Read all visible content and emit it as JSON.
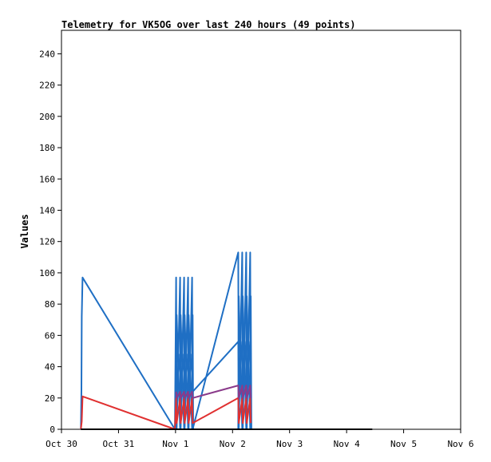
{
  "chart_data": {
    "type": "line",
    "title": "Telemetry for VK5OG over last 240 hours (49 points)",
    "xlabel": "",
    "ylabel": "Values",
    "ylim": [
      0,
      255
    ],
    "yticks": [
      0,
      20,
      40,
      60,
      80,
      100,
      120,
      140,
      160,
      180,
      200,
      220,
      240
    ],
    "xlim": [
      "Oct 30",
      "Nov 6"
    ],
    "xticks": [
      "Oct 30",
      "Oct 31",
      "Nov 1",
      "Nov 2",
      "Nov 3",
      "Nov 4",
      "Nov 5",
      "Nov 6"
    ],
    "grid": false,
    "series": [
      {
        "color": "#1f6fc4",
        "points": [
          [
            0.34,
            0
          ],
          [
            0.35,
            25
          ],
          [
            0.355,
            72
          ],
          [
            0.37,
            97
          ],
          [
            1.99,
            0
          ],
          [
            2.01,
            97
          ],
          [
            2.02,
            0
          ],
          [
            2.08,
            97
          ],
          [
            2.09,
            0
          ],
          [
            2.15,
            97
          ],
          [
            2.16,
            0
          ],
          [
            2.22,
            97
          ],
          [
            2.23,
            0
          ],
          [
            2.29,
            97
          ],
          [
            2.3,
            0
          ],
          [
            3.1,
            113
          ],
          [
            3.11,
            0
          ],
          [
            3.17,
            113
          ],
          [
            3.18,
            0
          ],
          [
            3.24,
            113
          ],
          [
            3.25,
            0
          ],
          [
            3.31,
            113
          ],
          [
            3.32,
            0
          ]
        ]
      },
      {
        "color": "#1f6fc4",
        "points": [
          [
            2.01,
            0
          ],
          [
            2.02,
            73
          ],
          [
            2.08,
            0
          ],
          [
            2.09,
            73
          ],
          [
            2.15,
            0
          ],
          [
            2.16,
            73
          ],
          [
            2.22,
            0
          ],
          [
            2.23,
            73
          ],
          [
            2.29,
            0
          ],
          [
            2.3,
            73
          ],
          [
            2.31,
            0
          ],
          [
            3.1,
            0
          ],
          [
            3.11,
            85
          ],
          [
            3.17,
            0
          ],
          [
            3.18,
            85
          ],
          [
            3.24,
            0
          ],
          [
            3.25,
            85
          ],
          [
            3.31,
            0
          ],
          [
            3.32,
            85
          ],
          [
            3.33,
            0
          ]
        ]
      },
      {
        "color": "#1f6fc4",
        "points": [
          [
            2.01,
            48
          ],
          [
            2.02,
            24
          ],
          [
            2.08,
            48
          ],
          [
            2.09,
            24
          ],
          [
            2.15,
            48
          ],
          [
            2.16,
            24
          ],
          [
            2.22,
            48
          ],
          [
            2.23,
            24
          ],
          [
            2.29,
            48
          ],
          [
            2.3,
            24
          ],
          [
            3.1,
            56
          ],
          [
            3.11,
            28
          ],
          [
            3.17,
            56
          ],
          [
            3.18,
            28
          ],
          [
            3.24,
            56
          ],
          [
            3.25,
            28
          ],
          [
            3.31,
            56
          ],
          [
            3.32,
            28
          ]
        ]
      },
      {
        "color": "#e03030",
        "points": [
          [
            0.34,
            0
          ],
          [
            0.355,
            5
          ],
          [
            0.37,
            21
          ],
          [
            1.99,
            0
          ],
          [
            2.01,
            20
          ],
          [
            2.02,
            4
          ],
          [
            2.08,
            20
          ],
          [
            2.09,
            4
          ],
          [
            2.15,
            20
          ],
          [
            2.16,
            4
          ],
          [
            2.22,
            20
          ],
          [
            2.23,
            4
          ],
          [
            2.29,
            20
          ],
          [
            2.3,
            4
          ],
          [
            3.1,
            20
          ],
          [
            3.11,
            4
          ],
          [
            3.17,
            20
          ],
          [
            3.18,
            4
          ],
          [
            3.24,
            20
          ],
          [
            3.25,
            4
          ],
          [
            3.31,
            20
          ],
          [
            3.32,
            4
          ]
        ]
      },
      {
        "color": "#8a3a8a",
        "points": [
          [
            2.01,
            24
          ],
          [
            2.02,
            20
          ],
          [
            2.08,
            24
          ],
          [
            2.09,
            20
          ],
          [
            2.15,
            24
          ],
          [
            2.16,
            20
          ],
          [
            2.22,
            24
          ],
          [
            2.23,
            20
          ],
          [
            2.29,
            24
          ],
          [
            2.3,
            20
          ],
          [
            3.1,
            28
          ],
          [
            3.11,
            20
          ],
          [
            3.17,
            28
          ],
          [
            3.18,
            20
          ],
          [
            3.24,
            28
          ],
          [
            3.25,
            20
          ],
          [
            3.31,
            28
          ],
          [
            3.32,
            20
          ]
        ]
      },
      {
        "color": "#000000",
        "points": [
          [
            0.34,
            0
          ],
          [
            5.45,
            0
          ]
        ]
      }
    ]
  }
}
